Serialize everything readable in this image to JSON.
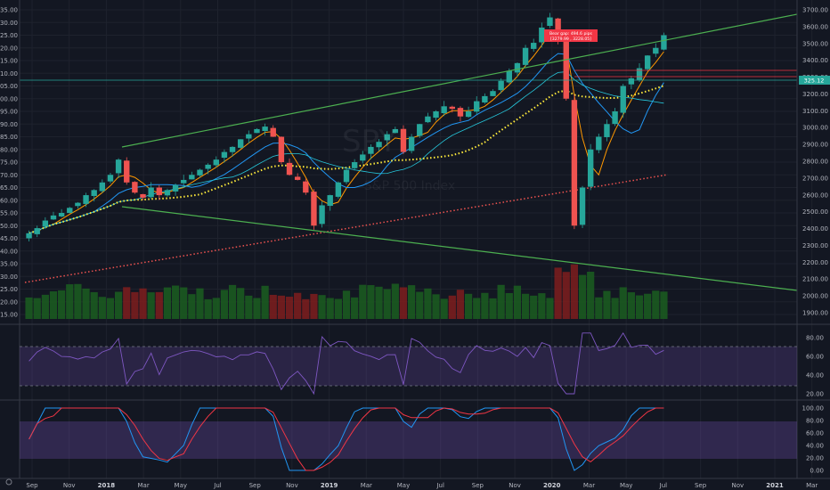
{
  "chart_data": {
    "type": "candlestick",
    "symbol_watermark": "SPY",
    "watermark_subtitle": "S&P 500 Index",
    "price_last": "325.12",
    "annotation": {
      "line1": "Bear gap: 494.6 pips",
      "line2": "[3279.99 , 3228.05]"
    },
    "left_axis": {
      "min": 215,
      "max": 335,
      "step": 5
    },
    "right_axis_ticks": [
      "3700.00",
      "3600.00",
      "3500.00",
      "3400.00",
      "3300.00",
      "3200.00",
      "3100.00",
      "3000.00",
      "2900.00",
      "2800.00",
      "2700.00",
      "2600.00",
      "2500.00",
      "2400.00",
      "2300.00",
      "2200.00",
      "2100.00",
      "2000.00",
      "1900.00"
    ],
    "rsi_axis_ticks": [
      "80.00",
      "60.00",
      "40.00",
      "20.00"
    ],
    "stoch_axis_ticks": [
      "100.00",
      "80.00",
      "60.00",
      "40.00",
      "20.00",
      "0.00"
    ],
    "time_labels": [
      "Sep",
      "Nov",
      "2018",
      "Mar",
      "May",
      "Jul",
      "Sep",
      "Nov",
      "2019",
      "Mar",
      "May",
      "Jul",
      "Sep",
      "Nov",
      "2020",
      "Mar",
      "May",
      "Jul",
      "Sep",
      "Nov",
      "2021",
      "Mar"
    ],
    "year_labels": [
      "2018",
      "2019",
      "2020",
      "2021"
    ],
    "closes": [
      247,
      249,
      252,
      254,
      255,
      257,
      259,
      262,
      264,
      267,
      270,
      276,
      267,
      263,
      261,
      265,
      262,
      264,
      266,
      268,
      270,
      272,
      274,
      276,
      279,
      281,
      284,
      286,
      288,
      289,
      285,
      275,
      270,
      268,
      263,
      250,
      258,
      262,
      267,
      272,
      275,
      278,
      281,
      283,
      286,
      288,
      279,
      285,
      290,
      293,
      295,
      297,
      296,
      293,
      295,
      299,
      301,
      303,
      307,
      311,
      314,
      320,
      322,
      328,
      332,
      323,
      300,
      250,
      265,
      280,
      285,
      290,
      295,
      305,
      308,
      312,
      317,
      320,
      325
    ]
  }
}
